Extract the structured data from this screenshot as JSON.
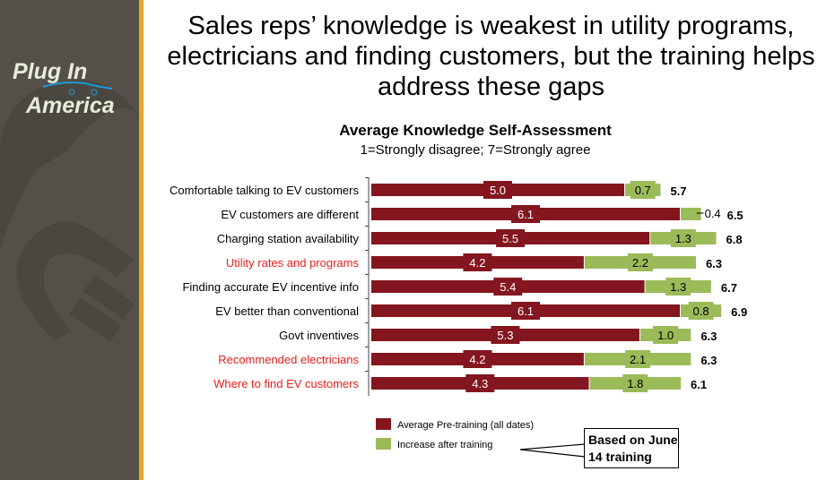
{
  "logo": {
    "line1": "Plug In",
    "line2": "America"
  },
  "slide_title": "Sales reps’ knowledge is weakest in utility programs, electricians and finding customers, but the training helps address these gaps",
  "chart_data": {
    "type": "bar",
    "orientation": "horizontal-stacked",
    "title": "Average Knowledge Self-Assessment",
    "subtitle": "1=Strongly disagree; 7=Strongly agree",
    "xlim": [
      0,
      7
    ],
    "categories": [
      "Comfortable talking to EV customers",
      "EV customers are different",
      "Charging station availability",
      "Utility rates and programs",
      "Finding accurate EV incentive info",
      "EV better than conventional",
      "Govt inventives",
      "Recommended electricians",
      "Where to find EV customers"
    ],
    "highlighted_categories": [
      "Utility rates and programs",
      "Recommended electricians",
      "Where to find EV customers"
    ],
    "series": [
      {
        "name": "Average Pre-training (all dates)",
        "color": "#84161f",
        "values": [
          5.0,
          6.1,
          5.5,
          4.2,
          5.4,
          6.1,
          5.3,
          4.2,
          4.3
        ]
      },
      {
        "name": "Increase after training",
        "color": "#9bbb59",
        "values": [
          0.7,
          0.4,
          1.3,
          2.2,
          1.3,
          0.8,
          1.0,
          2.1,
          1.8
        ]
      }
    ],
    "totals": [
      5.7,
      6.5,
      6.8,
      6.3,
      6.7,
      6.9,
      6.3,
      6.3,
      6.1
    ],
    "legend_position": "bottom",
    "highlight_color": "#e8201c"
  },
  "callout": "Based on June 14 training"
}
